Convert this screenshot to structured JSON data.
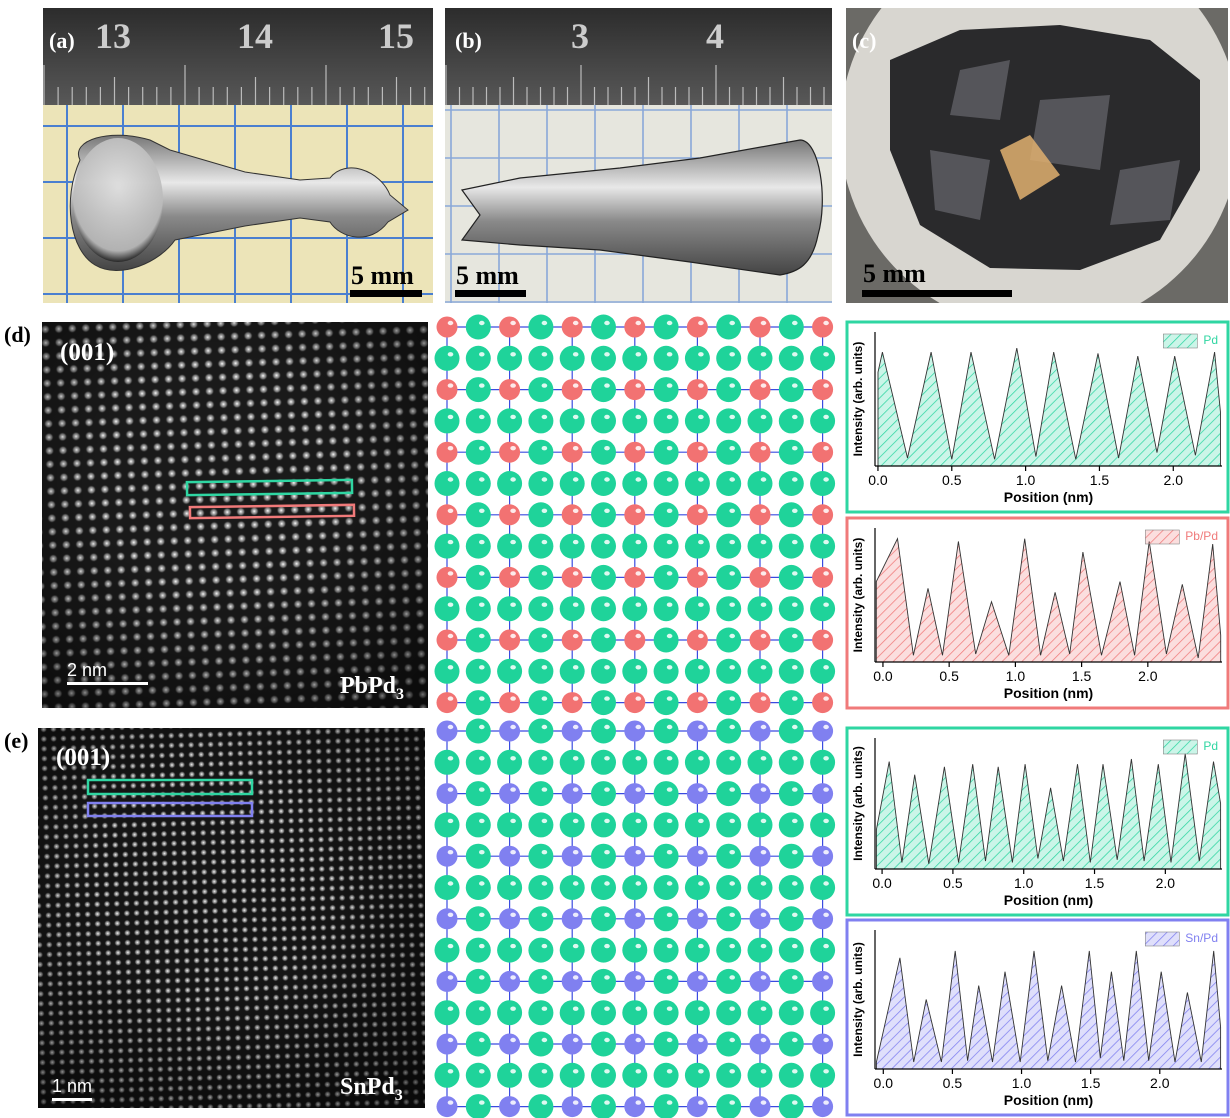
{
  "panels": {
    "a": {
      "label": "(a)",
      "ruler": [
        "13",
        "14",
        "15"
      ],
      "scale": "5 mm"
    },
    "b": {
      "label": "(b)",
      "ruler": [
        "3",
        "4"
      ],
      "scale": "5 mm"
    },
    "c": {
      "label": "(c)",
      "scale": "5 mm"
    },
    "d": {
      "label": "(d)",
      "direction": "(001)",
      "scale": "2 nm",
      "formula": {
        "base": "PbPd",
        "sub": "3"
      }
    },
    "e": {
      "label": "(e)",
      "direction": "(001)",
      "scale": "1 nm",
      "formula": {
        "base": "SnPd",
        "sub": "3"
      }
    }
  },
  "chart_data": [
    {
      "type": "area",
      "x_label": "Position (nm)",
      "y_label": "Intensity (arb. units)",
      "xlim": [
        -0.02,
        2.33
      ],
      "ylim": [
        0,
        1
      ],
      "xticks": [
        {
          "value": 0,
          "label": "0.0"
        },
        0.5,
        {
          "value": 1,
          "label": "1.0"
        },
        1.5,
        {
          "value": 2,
          "label": "2.0"
        }
      ],
      "series": [
        {
          "name": "Pd",
          "color": "#2fd6a2",
          "x": [
            0.0,
            0.03,
            0.2,
            0.36,
            0.5,
            0.63,
            0.79,
            0.94,
            1.07,
            1.19,
            1.34,
            1.49,
            1.63,
            1.76,
            1.89,
            2.01,
            2.15,
            2.28,
            2.32
          ],
          "values": [
            0.7,
            0.85,
            0.06,
            0.85,
            0.05,
            0.85,
            0.05,
            0.88,
            0.07,
            0.85,
            0.05,
            0.84,
            0.06,
            0.82,
            0.1,
            0.82,
            0.08,
            0.85,
            0.4
          ]
        }
      ]
    },
    {
      "type": "area",
      "x_label": "Position (nm)",
      "y_label": "Intensity (arb. units)",
      "xlim": [
        -0.06,
        2.56
      ],
      "ylim": [
        0,
        1
      ],
      "xticks": [
        {
          "value": 0,
          "label": "0.0"
        },
        0.5,
        {
          "value": 1,
          "label": "1.0"
        },
        1.5,
        {
          "value": 2,
          "label": "2.0"
        }
      ],
      "series": [
        {
          "name": "Pb/Pd",
          "color": "#f07a7a",
          "x": [
            -0.05,
            0.11,
            0.23,
            0.34,
            0.45,
            0.57,
            0.7,
            0.82,
            0.95,
            1.07,
            1.19,
            1.3,
            1.41,
            1.51,
            1.65,
            1.79,
            1.9,
            2.01,
            2.14,
            2.26,
            2.38,
            2.49,
            2.55
          ],
          "values": [
            0.6,
            0.92,
            0.05,
            0.55,
            0.05,
            0.9,
            0.06,
            0.45,
            0.05,
            0.92,
            0.05,
            0.52,
            0.06,
            0.82,
            0.05,
            0.6,
            0.05,
            0.9,
            0.06,
            0.58,
            0.03,
            0.88,
            0.2
          ]
        }
      ]
    },
    {
      "type": "area",
      "x_label": "Position (nm)",
      "y_label": "Intensity (arb. units)",
      "xlim": [
        -0.05,
        2.4
      ],
      "ylim": [
        0,
        1
      ],
      "xticks": [
        {
          "value": 0,
          "label": "0.0"
        },
        0.5,
        {
          "value": 1,
          "label": "1.0"
        },
        1.5,
        {
          "value": 2,
          "label": "2.0"
        }
      ],
      "series": [
        {
          "name": "Pd",
          "color": "#2fd6a2",
          "x": [
            -0.04,
            0.05,
            0.14,
            0.23,
            0.33,
            0.44,
            0.54,
            0.64,
            0.73,
            0.82,
            0.92,
            1.01,
            1.1,
            1.19,
            1.28,
            1.38,
            1.47,
            1.56,
            1.66,
            1.76,
            1.85,
            1.95,
            2.04,
            2.14,
            2.24,
            2.34,
            2.39
          ],
          "values": [
            0.3,
            0.82,
            0.05,
            0.72,
            0.04,
            0.78,
            0.05,
            0.8,
            0.06,
            0.78,
            0.05,
            0.8,
            0.08,
            0.62,
            0.06,
            0.8,
            0.05,
            0.8,
            0.07,
            0.84,
            0.06,
            0.8,
            0.05,
            0.88,
            0.06,
            0.82,
            0.5
          ]
        }
      ]
    },
    {
      "type": "area",
      "x_label": "Position (nm)",
      "y_label": "Intensity (arb. units)",
      "xlim": [
        -0.06,
        2.45
      ],
      "ylim": [
        0,
        1
      ],
      "xticks": [
        {
          "value": 0,
          "label": "0.0"
        },
        0.5,
        {
          "value": 1,
          "label": "1.0"
        },
        1.5,
        {
          "value": 2,
          "label": "2.0"
        }
      ],
      "series": [
        {
          "name": "Sn/Pd",
          "color": "#8080f0",
          "x": [
            -0.05,
            0.12,
            0.22,
            0.31,
            0.42,
            0.52,
            0.61,
            0.69,
            0.79,
            0.88,
            0.99,
            1.09,
            1.19,
            1.29,
            1.39,
            1.49,
            1.57,
            1.65,
            1.74,
            1.83,
            1.92,
            2.01,
            2.11,
            2.2,
            2.3,
            2.39,
            2.44
          ],
          "values": [
            0.05,
            0.8,
            0.05,
            0.5,
            0.05,
            0.85,
            0.06,
            0.6,
            0.05,
            0.7,
            0.05,
            0.85,
            0.06,
            0.6,
            0.05,
            0.85,
            0.08,
            0.7,
            0.06,
            0.85,
            0.06,
            0.7,
            0.05,
            0.55,
            0.05,
            0.85,
            0.3
          ]
        }
      ]
    }
  ]
}
